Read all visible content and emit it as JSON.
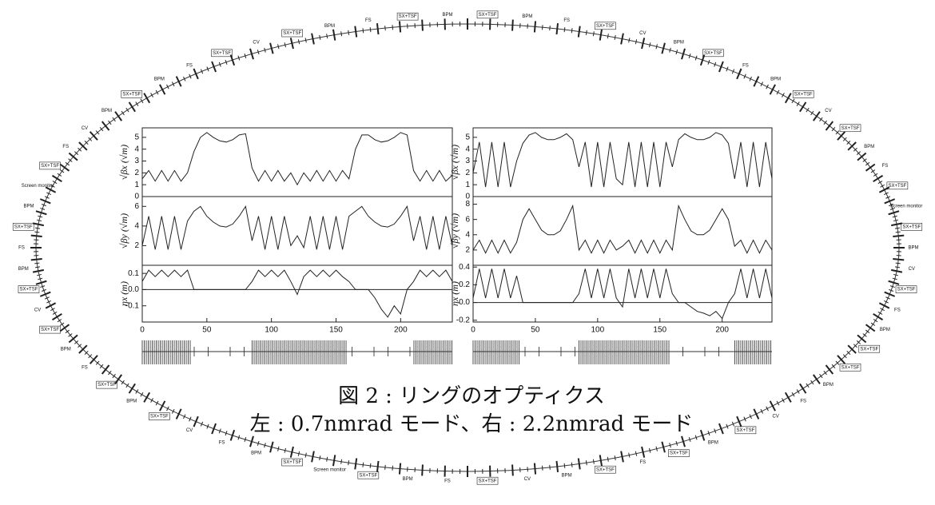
{
  "chart_data": [
    {
      "type": "line",
      "ylabel": "√βx (√m)",
      "color": "#222",
      "xlim": [
        0,
        240
      ],
      "ylim": [
        0,
        5.8
      ],
      "yticks": [
        0,
        1,
        2,
        3,
        4,
        5
      ],
      "x": [
        0,
        5,
        10,
        15,
        20,
        25,
        30,
        35,
        40,
        45,
        50,
        55,
        60,
        65,
        70,
        75,
        80,
        85,
        90,
        95,
        100,
        105,
        110,
        115,
        120,
        125,
        130,
        135,
        140,
        145,
        150,
        155,
        160,
        165,
        170,
        175,
        180,
        185,
        190,
        195,
        200,
        205,
        210,
        215,
        220,
        225,
        230,
        235,
        240
      ],
      "values": [
        1.5,
        2.2,
        1.3,
        2.2,
        1.3,
        2.2,
        1.3,
        2.0,
        3.8,
        5.0,
        5.4,
        5.0,
        4.7,
        4.6,
        4.8,
        5.2,
        5.3,
        2.4,
        1.3,
        2.2,
        1.3,
        2.2,
        1.3,
        2.0,
        1.0,
        2.0,
        1.3,
        2.2,
        1.3,
        2.2,
        1.3,
        2.2,
        1.5,
        4.0,
        5.2,
        5.2,
        4.8,
        4.6,
        4.7,
        5.0,
        5.4,
        5.2,
        2.2,
        1.3,
        2.2,
        1.3,
        2.2,
        1.3,
        1.8
      ]
    },
    {
      "type": "line",
      "ylabel": "√βy (√m)",
      "color": "#222",
      "xlim": [
        0,
        240
      ],
      "ylim": [
        0,
        7
      ],
      "yticks": [
        2,
        4,
        6
      ],
      "x": [
        0,
        5,
        10,
        15,
        20,
        25,
        30,
        35,
        40,
        45,
        50,
        55,
        60,
        65,
        70,
        75,
        80,
        85,
        90,
        95,
        100,
        105,
        110,
        115,
        120,
        125,
        130,
        135,
        140,
        145,
        150,
        155,
        160,
        165,
        170,
        175,
        180,
        185,
        190,
        195,
        200,
        205,
        210,
        215,
        220,
        225,
        230,
        235,
        240
      ],
      "values": [
        2,
        5,
        1.6,
        5,
        1.6,
        5,
        1.6,
        4.5,
        5.5,
        6.0,
        5.0,
        4.4,
        4.0,
        3.9,
        4.2,
        5.0,
        6.0,
        2.5,
        5,
        1.6,
        5,
        1.6,
        5,
        2.0,
        3.0,
        1.8,
        5,
        1.6,
        5,
        1.6,
        5,
        1.6,
        5,
        5.5,
        6.0,
        5.0,
        4.4,
        4.0,
        3.9,
        4.2,
        5.0,
        6.0,
        2.5,
        5,
        1.6,
        5,
        1.6,
        5,
        2
      ]
    },
    {
      "type": "line",
      "ylabel": "ηx (m)",
      "color": "#222",
      "zero_line": true,
      "xlim": [
        0,
        240
      ],
      "ylim": [
        -0.2,
        0.15
      ],
      "yticks": [
        -0.1,
        {
          "value": 0,
          "label": "0.0"
        },
        0.1
      ],
      "xticks": [
        0,
        50,
        100,
        150,
        200
      ],
      "x": [
        0,
        5,
        10,
        15,
        20,
        25,
        30,
        35,
        40,
        45,
        50,
        55,
        60,
        65,
        70,
        75,
        80,
        85,
        90,
        95,
        100,
        105,
        110,
        115,
        120,
        125,
        130,
        135,
        140,
        145,
        150,
        155,
        160,
        165,
        170,
        175,
        180,
        185,
        190,
        195,
        200,
        205,
        210,
        215,
        220,
        225,
        230,
        235,
        240
      ],
      "values": [
        0.05,
        0.12,
        0.08,
        0.12,
        0.08,
        0.12,
        0.08,
        0.12,
        0,
        0,
        0,
        0,
        0,
        0,
        0,
        0,
        0,
        0.05,
        0.12,
        0.08,
        0.12,
        0.08,
        0.12,
        0.05,
        -0.03,
        0.08,
        0.12,
        0.08,
        0.12,
        0.08,
        0.12,
        0.08,
        0.05,
        0,
        0,
        0,
        -0.05,
        -0.12,
        -0.17,
        -0.1,
        -0.15,
        0,
        0.05,
        0.12,
        0.08,
        0.12,
        0.08,
        0.12,
        0.05
      ]
    },
    {
      "type": "line",
      "ylabel": "√βx (√m)",
      "color": "#222",
      "xlim": [
        0,
        240
      ],
      "ylim": [
        0,
        5.8
      ],
      "yticks": [
        0,
        1,
        2,
        3,
        4,
        5
      ],
      "x": [
        0,
        5,
        10,
        15,
        20,
        25,
        30,
        35,
        40,
        45,
        50,
        55,
        60,
        65,
        70,
        75,
        80,
        85,
        90,
        95,
        100,
        105,
        110,
        115,
        120,
        125,
        130,
        135,
        140,
        145,
        150,
        155,
        160,
        165,
        170,
        175,
        180,
        185,
        190,
        195,
        200,
        205,
        210,
        215,
        220,
        225,
        230,
        235,
        240
      ],
      "values": [
        2,
        4.6,
        0.8,
        4.6,
        0.8,
        4.6,
        0.8,
        3,
        4.5,
        5.2,
        5.4,
        5.0,
        4.8,
        4.8,
        5.0,
        5.3,
        4.8,
        2.5,
        4.6,
        0.8,
        4.6,
        0.8,
        4.6,
        1.5,
        1.0,
        4.6,
        0.8,
        4.6,
        0.8,
        4.6,
        0.8,
        4.6,
        2.5,
        4.8,
        5.3,
        5.0,
        4.8,
        4.8,
        5.0,
        5.4,
        5.2,
        4.5,
        1.5,
        4.6,
        0.8,
        4.6,
        0.8,
        4.6,
        1.5
      ]
    },
    {
      "type": "line",
      "ylabel": "√βy (√m)",
      "color": "#222",
      "xlim": [
        0,
        240
      ],
      "ylim": [
        0,
        9
      ],
      "yticks": [
        2,
        4,
        6,
        8
      ],
      "x": [
        0,
        5,
        10,
        15,
        20,
        25,
        30,
        35,
        40,
        45,
        50,
        55,
        60,
        65,
        70,
        75,
        80,
        85,
        90,
        95,
        100,
        105,
        110,
        115,
        120,
        125,
        130,
        135,
        140,
        145,
        150,
        155,
        160,
        165,
        170,
        175,
        180,
        185,
        190,
        195,
        200,
        205,
        210,
        215,
        220,
        225,
        230,
        235,
        240
      ],
      "values": [
        2,
        3.3,
        1.6,
        3.3,
        1.6,
        3.3,
        1.6,
        3,
        6,
        7.4,
        6,
        4.6,
        4.0,
        4.0,
        4.5,
        6,
        7.8,
        2,
        3.3,
        1.6,
        3.3,
        1.6,
        3.3,
        2,
        2.5,
        3.3,
        1.6,
        3.3,
        1.6,
        3.3,
        1.6,
        3.3,
        2,
        7.8,
        6,
        4.5,
        4.0,
        4.0,
        4.6,
        6,
        7.4,
        6,
        2.5,
        3.3,
        1.6,
        3.3,
        1.6,
        3.3,
        2
      ]
    },
    {
      "type": "line",
      "ylabel": "ηx (m)",
      "color": "#222",
      "zero_line": true,
      "xlim": [
        0,
        240
      ],
      "ylim": [
        -0.22,
        0.42
      ],
      "yticks": [
        -0.2,
        {
          "value": 0,
          "label": "0.0"
        },
        0.2,
        0.4
      ],
      "xticks": [
        0,
        50,
        100,
        150,
        200
      ],
      "x": [
        0,
        5,
        10,
        15,
        20,
        25,
        30,
        35,
        40,
        45,
        50,
        55,
        60,
        65,
        70,
        75,
        80,
        85,
        90,
        95,
        100,
        105,
        110,
        115,
        120,
        125,
        130,
        135,
        140,
        145,
        150,
        155,
        160,
        165,
        170,
        175,
        180,
        185,
        190,
        195,
        200,
        205,
        210,
        215,
        220,
        225,
        230,
        235,
        240
      ],
      "values": [
        0.05,
        0.38,
        0.05,
        0.38,
        0.05,
        0.38,
        0.05,
        0.3,
        0,
        0,
        0,
        0,
        0,
        0,
        0,
        0,
        0,
        0.1,
        0.38,
        0.05,
        0.38,
        0.05,
        0.38,
        0.05,
        -0.05,
        0.38,
        0.05,
        0.38,
        0.05,
        0.38,
        0.05,
        0.38,
        0.1,
        0,
        0,
        -0.05,
        -0.1,
        -0.12,
        -0.15,
        -0.1,
        -0.18,
        0,
        0.1,
        0.38,
        0.05,
        0.38,
        0.05,
        0.38,
        0.05
      ]
    }
  ],
  "caption": {
    "line1": "図 2 : リングのオプティクス",
    "line2": "左 : 0.7nmrad モード、右 : 2.2nmrad モード"
  },
  "ring": {
    "labels": [
      "SX+TSF",
      "BPM",
      "FS",
      "SX+TSF",
      "CV",
      "BPM",
      "SX+TSF",
      "FS",
      "BPM",
      "SX+TSF",
      "CV",
      "SX+TSF",
      "BPM",
      "FS",
      "SX+TSF",
      "Screen monitor",
      "SX+TSF",
      "BPM",
      "CV",
      "SX+TSF",
      "FS",
      "BPM",
      "SX+TSF",
      "SX+TSF",
      "BPM",
      "FS",
      "CV",
      "SX+TSF",
      "BPM",
      "SX+TSF",
      "FS",
      "SX+TSF",
      "BPM",
      "CV",
      "SX+TSF",
      "FS",
      "BPM",
      "SX+TSF",
      "Screen monitor",
      "SX+TSF",
      "BPM",
      "FS",
      "CV",
      "SX+TSF",
      "BPM",
      "SX+TSF",
      "FS",
      "BPM",
      "SX+TSF",
      "CV",
      "SX+TSF",
      "BPM",
      "FS",
      "SX+TSF",
      "BPM",
      "Screen monitor",
      "SX+TSF",
      "FS",
      "CV",
      "BPM",
      "SX+TSF",
      "BPM",
      "FS",
      "SX+TSF",
      "CV",
      "SX+TSF",
      "BPM",
      "FS",
      "SX+TSF",
      "BPM"
    ]
  }
}
